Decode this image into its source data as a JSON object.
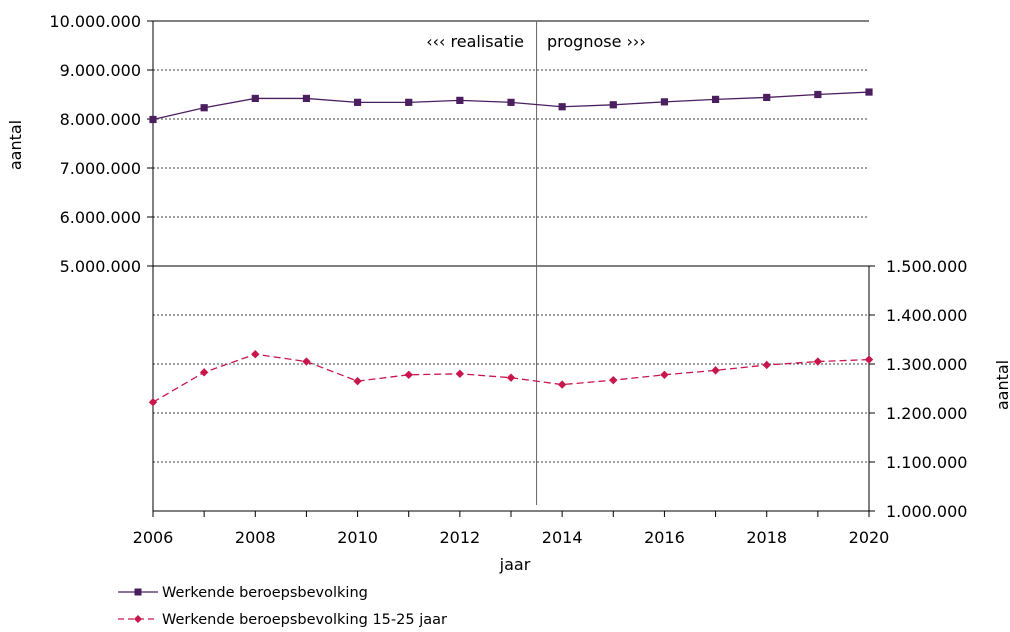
{
  "chart_data": {
    "type": "line",
    "title": "",
    "xlabel": "jaar",
    "ylabel_left": "aantal",
    "ylabel_right": "aantal",
    "x": [
      2006,
      2007,
      2008,
      2009,
      2010,
      2011,
      2012,
      2013,
      2014,
      2015,
      2016,
      2017,
      2018,
      2019,
      2020
    ],
    "x_tick_labels": [
      "2006",
      "2008",
      "2010",
      "2012",
      "2014",
      "2016",
      "2018",
      "2020"
    ],
    "xlim": [
      2006,
      2020
    ],
    "y_left": {
      "range": [
        0,
        10000000
      ],
      "tick_values": [
        5000000,
        6000000,
        7000000,
        8000000,
        9000000,
        10000000
      ],
      "tick_labels": [
        "5.000.000",
        "6.000.000",
        "7.000.000",
        "8.000.000",
        "9.000.000",
        "10.000.000"
      ]
    },
    "y_right": {
      "range": [
        1000000,
        2000000
      ],
      "tick_values": [
        1000000,
        1100000,
        1200000,
        1300000,
        1400000,
        1500000
      ],
      "tick_labels": [
        "1.000.000",
        "1.100.000",
        "1.200.000",
        "1.300.000",
        "1.400.000",
        "1.500.000"
      ]
    },
    "divider_x": 2013.5,
    "annotations": {
      "left": "‹‹‹ realisatie",
      "right": "prognose ›››"
    },
    "grid": true,
    "legend_position": "bottom-left",
    "series": [
      {
        "name": "Werkende beroepsbevolking",
        "axis": "left",
        "color": "#4b1f5f",
        "marker": "square",
        "line_style": "solid",
        "values": [
          7990000,
          8230000,
          8420000,
          8420000,
          8340000,
          8340000,
          8380000,
          8340000,
          8250000,
          8290000,
          8350000,
          8400000,
          8440000,
          8500000,
          8550000
        ]
      },
      {
        "name": "Werkende beroepsbevolking 15-25 jaar",
        "axis": "right",
        "color": "#c8174c",
        "marker": "diamond",
        "line_style": "dashed",
        "values": [
          1222000,
          1283000,
          1320000,
          1305000,
          1265000,
          1278000,
          1280000,
          1272000,
          1258000,
          1267000,
          1278000,
          1287000,
          1298000,
          1305000,
          1309000
        ]
      }
    ]
  }
}
